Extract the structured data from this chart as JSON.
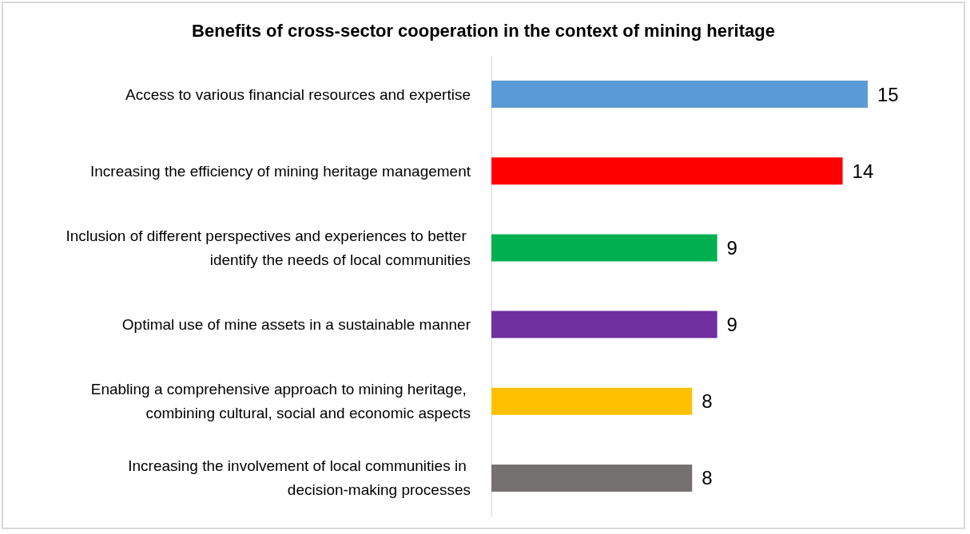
{
  "chart_data": {
    "type": "bar",
    "orientation": "horizontal",
    "title": "Benefits of cross-sector cooperation in the context of mining heritage",
    "categories": [
      "Access to various financial resources and expertise",
      "Increasing the efficiency of mining heritage management",
      "Inclusion of different perspectives and experiences to better identify the needs of local communities",
      "Optimal use of mine assets in a sustainable manner",
      "Enabling a comprehensive approach to mining heritage, combining cultural, social and economic aspects",
      "Increasing the involvement of local communities in decision-making processes"
    ],
    "values": [
      15,
      14,
      9,
      9,
      8,
      8
    ],
    "colors": [
      "#5b9bd5",
      "#ff0000",
      "#00b050",
      "#7030a0",
      "#ffc000",
      "#767171"
    ],
    "data_labels": true
  }
}
